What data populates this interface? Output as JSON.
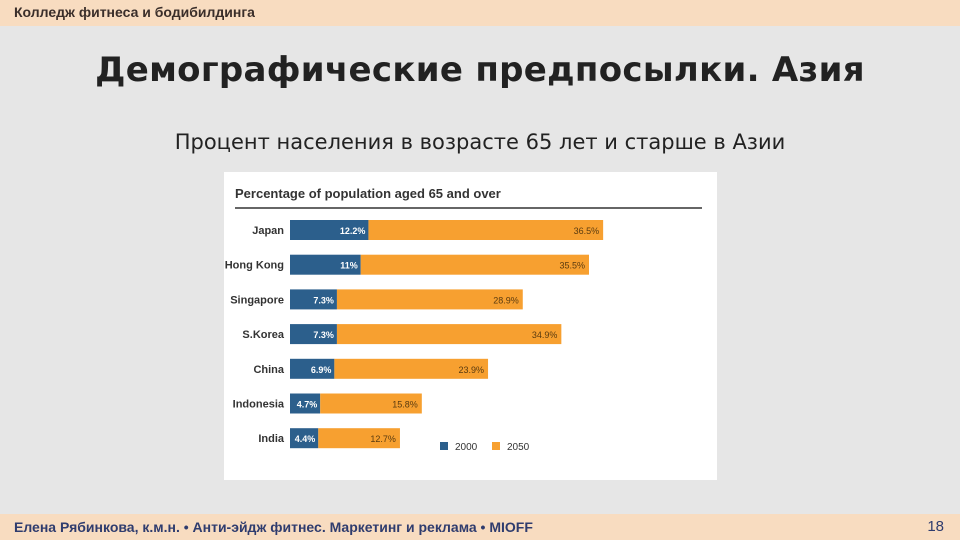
{
  "header": {
    "label": "Колледж фитнеса и бодибилдинга"
  },
  "slide": {
    "title": "Демографические предпосылки. Азия",
    "subtitle": "Процент населения в возрасте 65 лет и старше в Азии"
  },
  "chart_data": {
    "type": "bar",
    "orientation": "horizontal",
    "stacked": true,
    "title": "Percentage of population aged 65 and over",
    "categories": [
      "Japan",
      "Hong Kong",
      "Singapore",
      "S.Korea",
      "China",
      "Indonesia",
      "India"
    ],
    "series": [
      {
        "name": "2000",
        "color": "#2c5f8c",
        "values": [
          12.2,
          11,
          7.3,
          7.3,
          6.9,
          4.7,
          4.4
        ],
        "labels": [
          "12.2%",
          "11%",
          "7.3%",
          "7.3%",
          "6.9%",
          "4.7%",
          "4.4%"
        ]
      },
      {
        "name": "2050",
        "color": "#f7a030",
        "values": [
          36.5,
          35.5,
          28.9,
          34.9,
          23.9,
          15.8,
          12.7
        ],
        "labels": [
          "36.5%",
          "35.5%",
          "28.9%",
          "34.9%",
          "23.9%",
          "15.8%",
          "12.7%"
        ]
      }
    ],
    "legend_position": "bottom-right",
    "grid": false
  },
  "footer": {
    "text": "Елена Рябинкова, к.м.н. • Анти-эйдж фитнес. Маркетинг и реклама • MIOFF",
    "page_number": "18"
  }
}
